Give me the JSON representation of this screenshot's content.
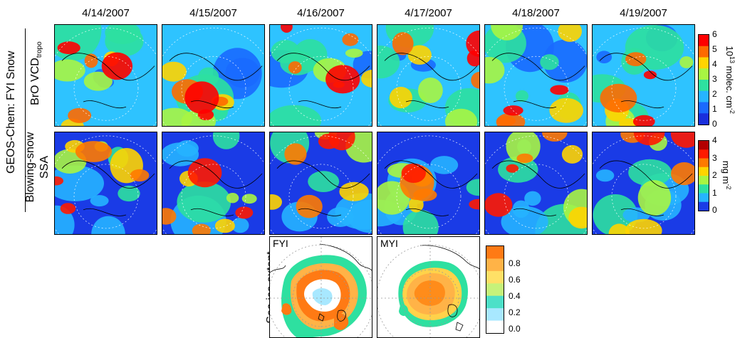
{
  "dates": [
    "4/14/2007",
    "4/15/2007",
    "4/16/2007",
    "4/17/2007",
    "4/18/2007",
    "4/19/2007"
  ],
  "labels": {
    "model": "GEOS-Chem: FYI Snow",
    "row1_main": "BrO VCD",
    "row1_sub": "tropo",
    "row2_line1": "Blowing-snow",
    "row2_line2": "SSA",
    "row3": "Sea ice extent",
    "ice_fyi": "FYI",
    "ice_myi": "MYI"
  },
  "colorbars": {
    "bro": {
      "ticks": [
        "6",
        "5",
        "4",
        "3",
        "2",
        "1",
        "0"
      ],
      "unit_base": "10",
      "unit_exp": "13",
      "unit_mid": " molec. cm",
      "unit_exp2": "-2",
      "colors": [
        "#ff0000",
        "#ff6a00",
        "#ffd400",
        "#a8f542",
        "#2ee0a0",
        "#26b4ff",
        "#1a6aff",
        "#1a2fdc"
      ]
    },
    "ssa": {
      "ticks": [
        "4",
        "3",
        "2",
        "1",
        "0"
      ],
      "unit_mid": "mg m",
      "unit_exp": "-2",
      "colors": [
        "#b30000",
        "#ff1a00",
        "#ff7a00",
        "#ffd400",
        "#a8f542",
        "#2ee0a0",
        "#26b4ff",
        "#1a3be6"
      ]
    },
    "ice": {
      "ticks": [
        "0.8",
        "0.6",
        "0.4",
        "0.2",
        "0.0"
      ],
      "colors": [
        "#ff7a14",
        "#ffb347",
        "#ffe066",
        "#c6f27a",
        "#4de0c8",
        "#a8e8ff",
        "#ffffff"
      ]
    }
  }
}
